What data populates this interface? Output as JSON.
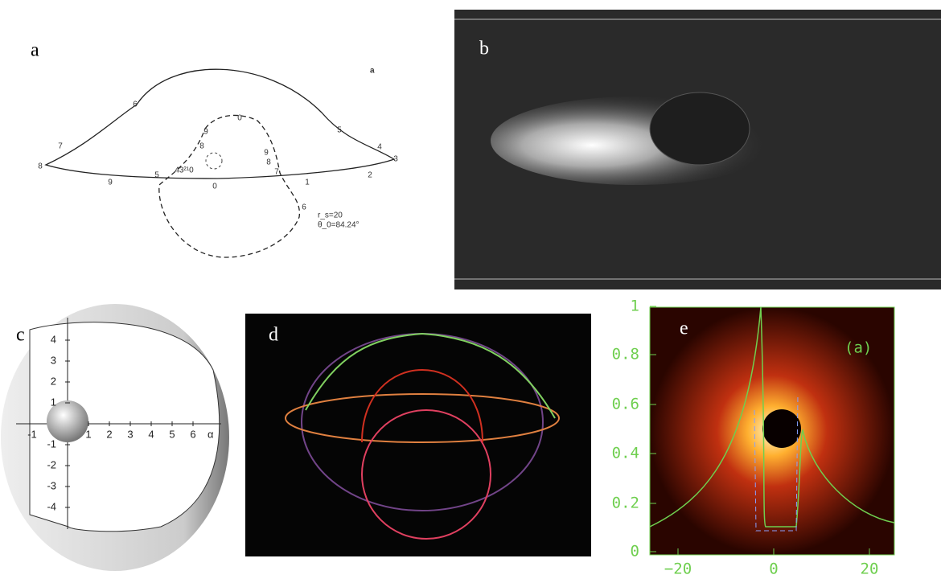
{
  "panels": {
    "a": {
      "label": "a",
      "corner_label": "a",
      "outer_labels": [
        "6",
        "5",
        "4",
        "3",
        "7",
        "8",
        "9",
        "2",
        "1",
        "0"
      ],
      "inner_labels": [
        "9",
        "0",
        "8",
        "9",
        "8",
        "7",
        "5",
        "43²¹0",
        "6"
      ],
      "params": [
        "r_s=20",
        "θ_0=84.24°"
      ]
    },
    "b": {
      "label": "b"
    },
    "c": {
      "label": "c",
      "x_ticks": [
        "-1",
        "1",
        "2",
        "3",
        "4",
        "5",
        "6"
      ],
      "x_axis_label": "α",
      "y_ticks": [
        "4",
        "3",
        "2",
        "1",
        "-1",
        "-2",
        "-3",
        "-4"
      ]
    },
    "d": {
      "label": "d"
    },
    "e": {
      "label": "e",
      "plot_label": "(a)",
      "y_ticks": [
        "0",
        "0.2",
        "0.4",
        "0.6",
        "0.8",
        "1"
      ],
      "x_ticks": [
        "−20",
        "0",
        "20"
      ]
    }
  }
}
